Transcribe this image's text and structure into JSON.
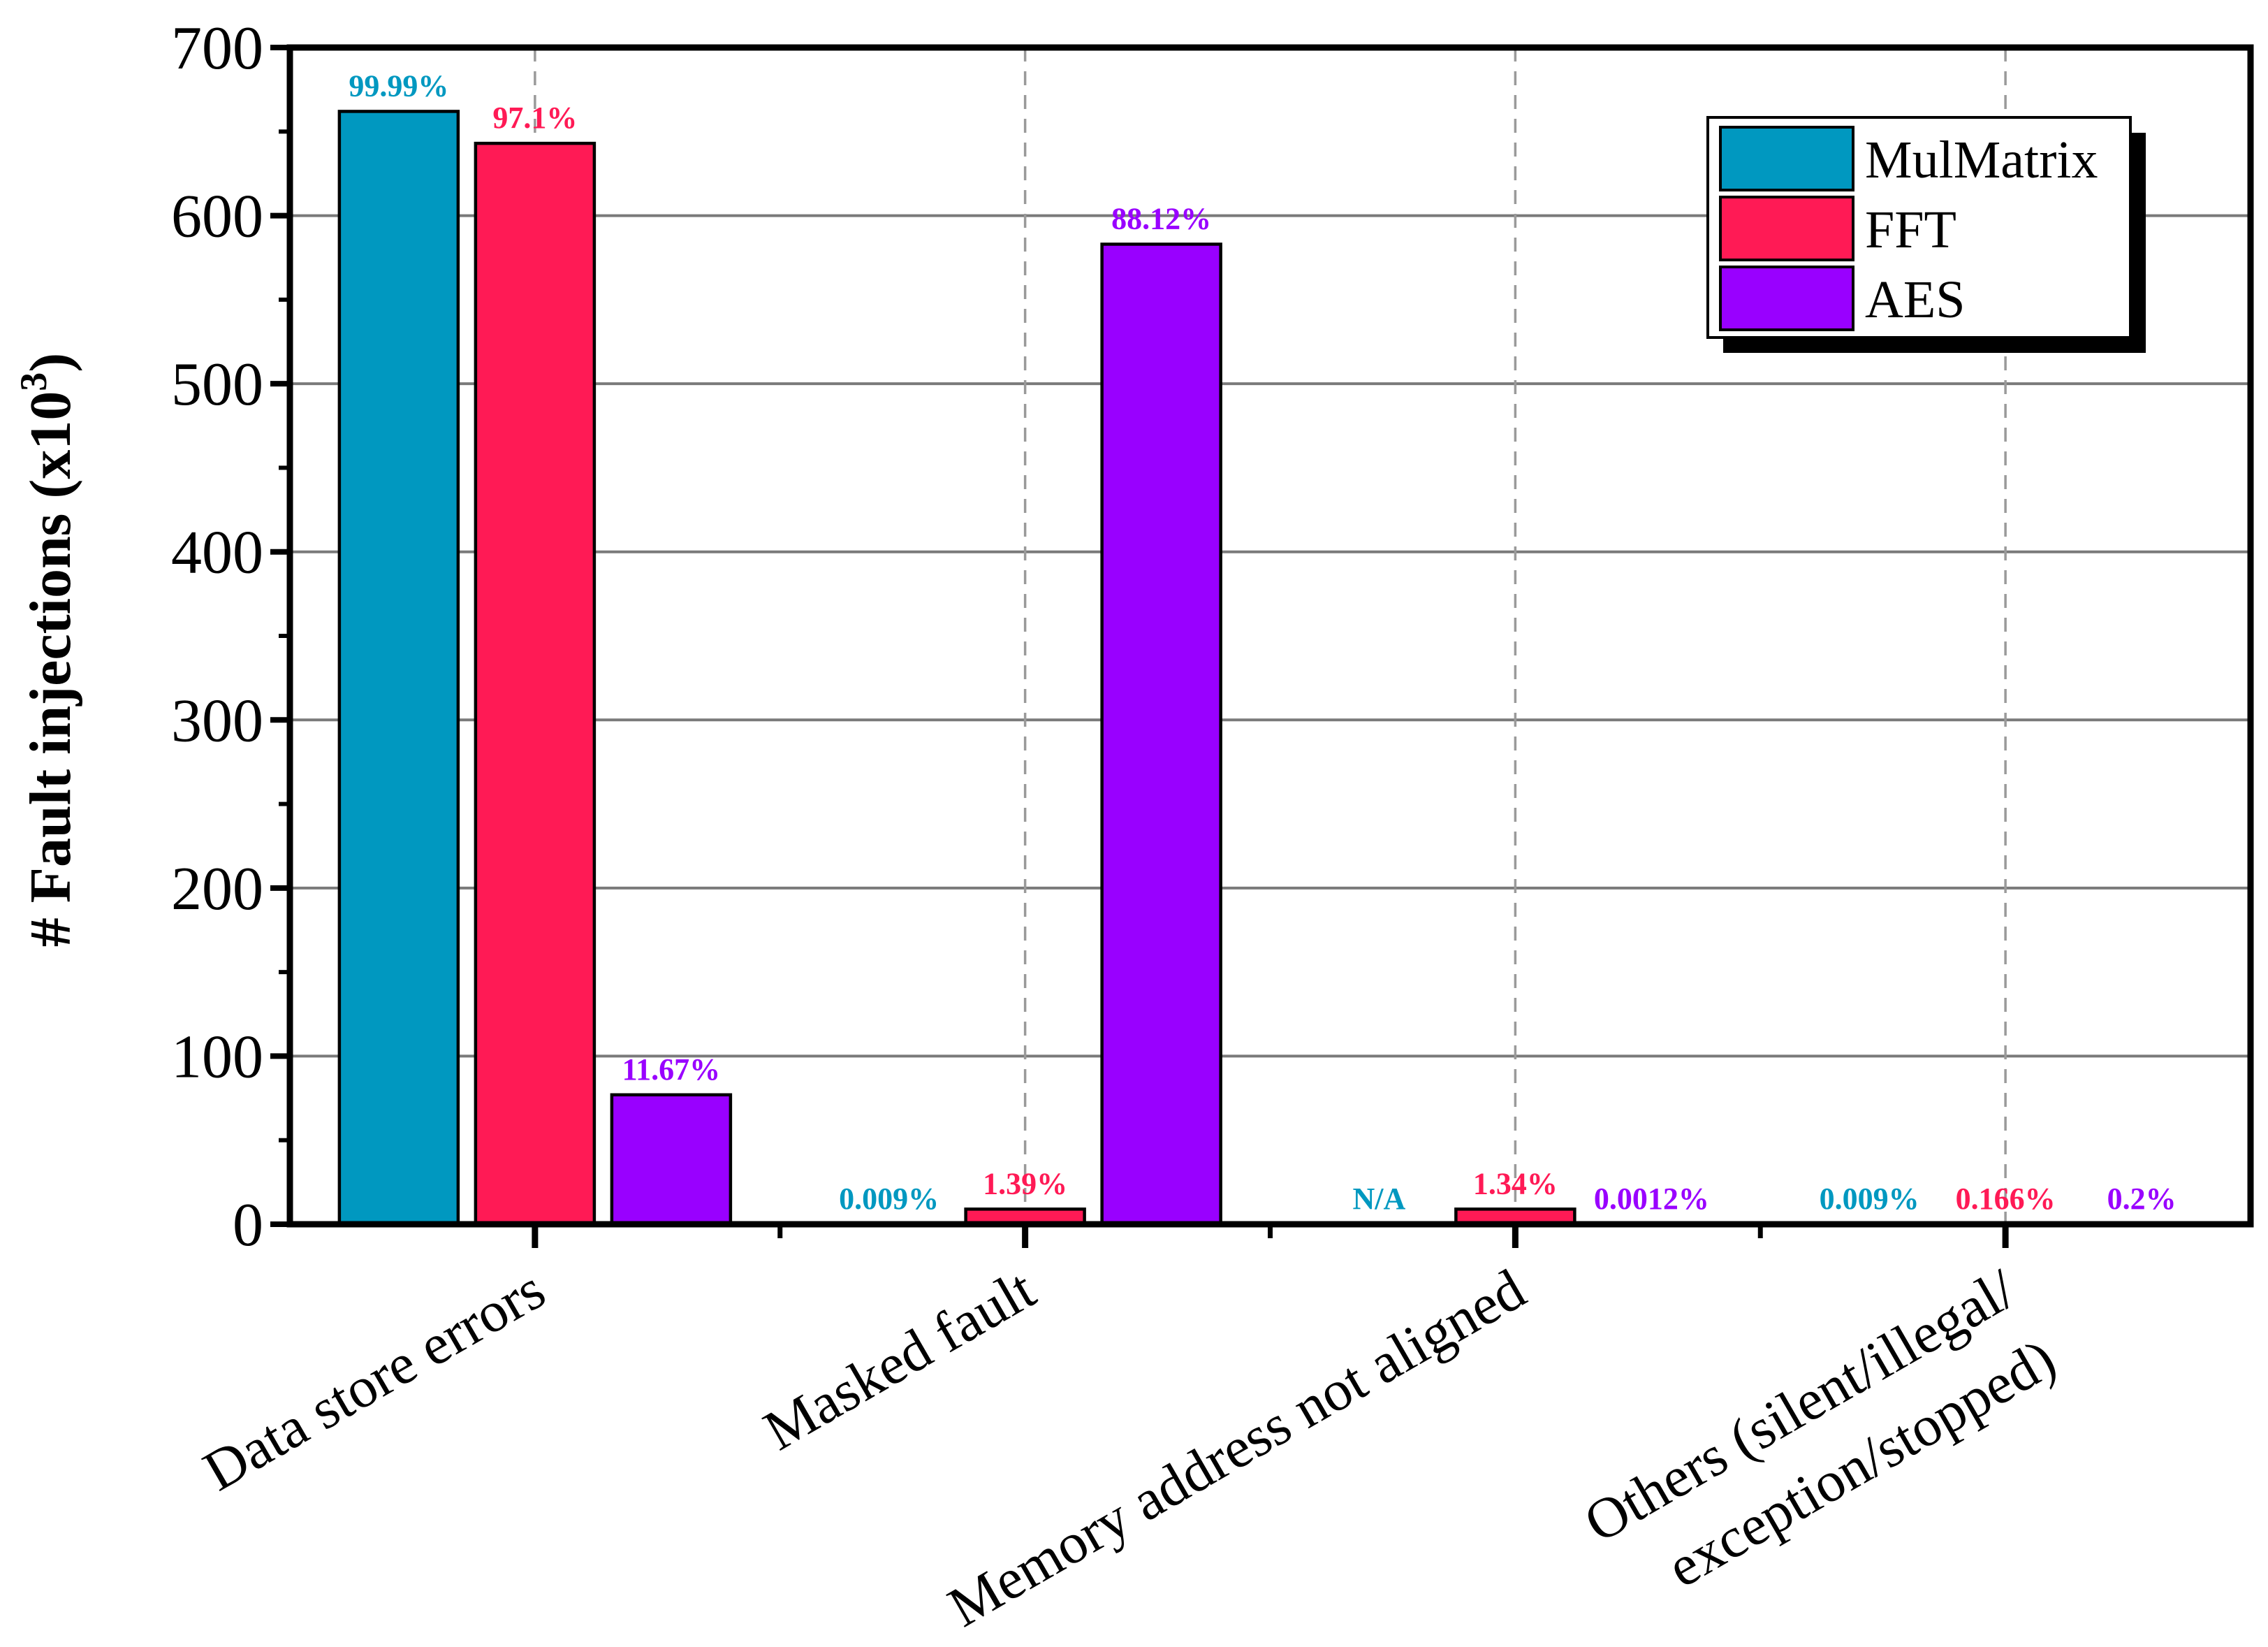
{
  "chart_data": {
    "type": "bar",
    "ylabel": "# Fault injections (x10",
    "ylabel_sup": "3",
    "ylabel_close": ")",
    "ylim": [
      0,
      700
    ],
    "yticks": [
      "0",
      "100",
      "200",
      "300",
      "400",
      "500",
      "600",
      "700"
    ],
    "grid": "horizontal solid, vertical dashed",
    "legend_position": "top-right",
    "categories": [
      [
        "Data store errors"
      ],
      [
        "Masked fault"
      ],
      [
        "Memory address not aligned"
      ],
      [
        "Others (silent/illegal/",
        "exception/stopped)"
      ]
    ],
    "series": [
      {
        "name": "MulMatrix",
        "color": "#0098C0",
        "values": [
          662,
          0,
          0,
          0
        ],
        "labels": [
          "99.99%",
          "0.009%",
          "N/A",
          "0.009%"
        ]
      },
      {
        "name": "FFT",
        "color": "#FF1A55",
        "values": [
          643,
          9,
          9,
          0
        ],
        "labels": [
          "97.1%",
          "1.39%",
          "1.34%",
          "0.166%"
        ]
      },
      {
        "name": "AES",
        "color": "#9900FF",
        "values": [
          77,
          583,
          0,
          0
        ],
        "labels": [
          "11.67%",
          "88.12%",
          "0.0012%",
          "0.2%"
        ]
      }
    ]
  }
}
